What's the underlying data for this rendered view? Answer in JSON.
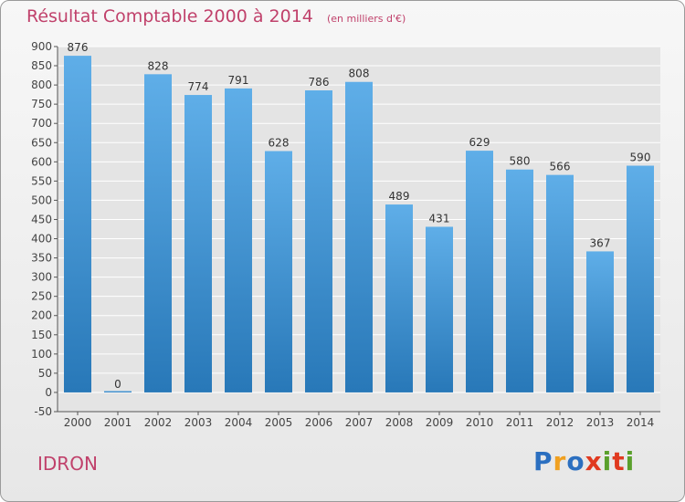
{
  "header": {
    "title": "Résultat Comptable 2000 à 2014",
    "unit": "(en milliers d'€)"
  },
  "footer": {
    "commune": "IDRON",
    "logo": {
      "letters": [
        "P",
        "r",
        "o",
        "x",
        "i",
        "t",
        "i"
      ]
    }
  },
  "colors": {
    "title": "#c0416b",
    "bar_top": "#5faee8",
    "bar_bottom": "#2878b8",
    "logo": [
      "#2b6fc0",
      "#f0a020",
      "#2b6fc0",
      "#e03a20",
      "#5aa02c",
      "#e03a20",
      "#5aa02c"
    ]
  },
  "chart_data": {
    "type": "bar",
    "categories": [
      "2000",
      "2001",
      "2002",
      "2003",
      "2004",
      "2005",
      "2006",
      "2007",
      "2008",
      "2009",
      "2010",
      "2011",
      "2012",
      "2013",
      "2014"
    ],
    "values": [
      876,
      0,
      828,
      774,
      791,
      628,
      786,
      808,
      489,
      431,
      629,
      580,
      566,
      367,
      590
    ],
    "ylim": [
      -50,
      900
    ],
    "yticks": [
      -50,
      0,
      50,
      100,
      150,
      200,
      250,
      300,
      350,
      400,
      450,
      500,
      550,
      600,
      650,
      700,
      750,
      800,
      850,
      900
    ],
    "grid": true,
    "data_labels": true
  }
}
